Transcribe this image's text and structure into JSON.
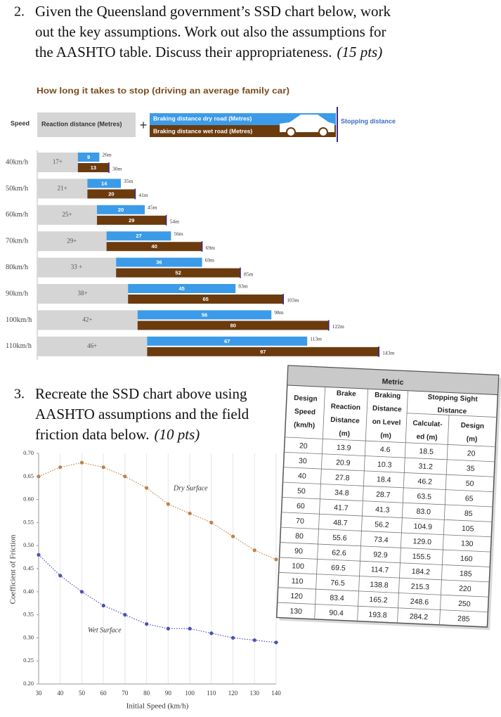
{
  "questions": [
    {
      "number": "2.",
      "lines": [
        "Given the Queensland government’s SSD chart below, work",
        "out the key assumptions. Work out also the assumptions for",
        "the AASHTO table. Discuss their appropriateness."
      ],
      "points": "(15 pts)"
    },
    {
      "number": "3.",
      "lines": [
        "Recreate the SSD chart above using",
        "AASHTO assumptions and the field",
        "friction data below."
      ],
      "points": "(10 pts)"
    }
  ],
  "chart_data": [
    {
      "type": "stacked-bar",
      "title": "How long it takes to stop (driving an average family car)",
      "speed_label": "Speed",
      "plus": "+",
      "categories": [
        "40km/h",
        "50km/h",
        "60km/h",
        "70km/h",
        "80km/h",
        "90km/h",
        "100km/h",
        "110km/h"
      ],
      "series": [
        {
          "name": "Reaction distance (Metres)",
          "color": "#d5d5d5",
          "values": [
            17,
            21,
            25,
            29,
            33,
            38,
            42,
            46
          ],
          "value_labels": [
            "17+",
            "21+",
            "25+",
            "29+",
            "33 +",
            "38+",
            "42+",
            "46+"
          ]
        },
        {
          "name": "Braking distance dry road (Metres)",
          "color": "#3c9be8",
          "values": [
            9,
            14,
            20,
            27,
            36,
            45,
            56,
            67
          ]
        },
        {
          "name": "Braking distance wet road (Metres)",
          "color": "#6b3b0e",
          "values": [
            13,
            20,
            29,
            40,
            52,
            65,
            80,
            97
          ]
        }
      ],
      "stopping": {
        "name": "Stopping distance",
        "color": "#3b2a8c",
        "dry": [
          26,
          35,
          45,
          56,
          69,
          83,
          98,
          113
        ],
        "dry_labels": [
          "26m",
          "35m",
          "45m",
          "56m",
          "69m",
          "83m",
          "98m",
          "113m"
        ],
        "wet": [
          30,
          41,
          54,
          69,
          85,
          103,
          122,
          143
        ],
        "wet_labels": [
          "30m",
          "41m",
          "54m",
          "69m",
          "85m",
          "103m",
          "122m",
          "143m"
        ]
      }
    },
    {
      "type": "line",
      "xlabel": "Initial Speed (km/h)",
      "ylabel": "Coefficient of Friction",
      "x": [
        30,
        40,
        50,
        60,
        70,
        80,
        90,
        100,
        110,
        120,
        130,
        140
      ],
      "series": [
        {
          "name": "Dry Surface",
          "color": "#c0804c",
          "values": [
            0.65,
            0.67,
            0.68,
            0.67,
            0.65,
            0.625,
            0.59,
            0.57,
            0.55,
            0.52,
            0.49,
            0.47
          ]
        },
        {
          "name": "Wet Surface",
          "color": "#4a50b8",
          "values": [
            0.48,
            0.435,
            0.4,
            0.37,
            0.35,
            0.33,
            0.32,
            0.32,
            0.31,
            0.3,
            0.295,
            0.29
          ]
        }
      ],
      "xlim": [
        30,
        140
      ],
      "ylim": [
        0.2,
        0.7
      ],
      "xticks": [
        30,
        40,
        50,
        60,
        70,
        80,
        90,
        100,
        110,
        120,
        130,
        140
      ],
      "yticks": [
        {
          "value": 0.2,
          "label": "0.20"
        },
        0.25,
        {
          "value": 0.3,
          "label": "0.30"
        },
        0.35,
        {
          "value": 0.4,
          "label": "0.40"
        },
        0.45,
        {
          "value": 0.5,
          "label": "0.50"
        },
        0.55,
        {
          "value": 0.6,
          "label": "0.60"
        },
        0.65,
        {
          "value": 0.7,
          "label": "0.70"
        }
      ],
      "grid": true
    }
  ],
  "table": {
    "title": "Metric",
    "headers": [
      [
        "Design",
        "Speed",
        "(km/h)"
      ],
      [
        "Brake",
        "Reaction",
        "Distance",
        "(m)"
      ],
      [
        "Braking",
        "Distance",
        "on Level",
        "(m)"
      ]
    ],
    "group_header": [
      "Stopping Sight",
      "Distance"
    ],
    "sub_headers": [
      [
        "Calculat-",
        "ed (m)"
      ],
      [
        "Design",
        "(m)"
      ]
    ],
    "rows": [
      [
        "20",
        "13.9",
        "4.6",
        "18.5",
        "20"
      ],
      [
        "30",
        "20.9",
        "10.3",
        "31.2",
        "35"
      ],
      [
        "40",
        "27.8",
        "18.4",
        "46.2",
        "50"
      ],
      [
        "50",
        "34.8",
        "28.7",
        "63.5",
        "65"
      ],
      [
        "60",
        "41.7",
        "41.3",
        "83.0",
        "85"
      ],
      [
        "70",
        "48.7",
        "56.2",
        "104.9",
        "105"
      ],
      [
        "80",
        "55.6",
        "73.4",
        "129.0",
        "130"
      ],
      [
        "90",
        "62.6",
        "92.9",
        "155.5",
        "160"
      ],
      [
        "100",
        "69.5",
        "114.7",
        "184.2",
        "185"
      ],
      [
        "110",
        "76.5",
        "138.8",
        "215.3",
        "220"
      ],
      [
        "120",
        "83.4",
        "165.2",
        "248.6",
        "250"
      ],
      [
        "130",
        "90.4",
        "193.8",
        "284.2",
        "285"
      ]
    ]
  }
}
